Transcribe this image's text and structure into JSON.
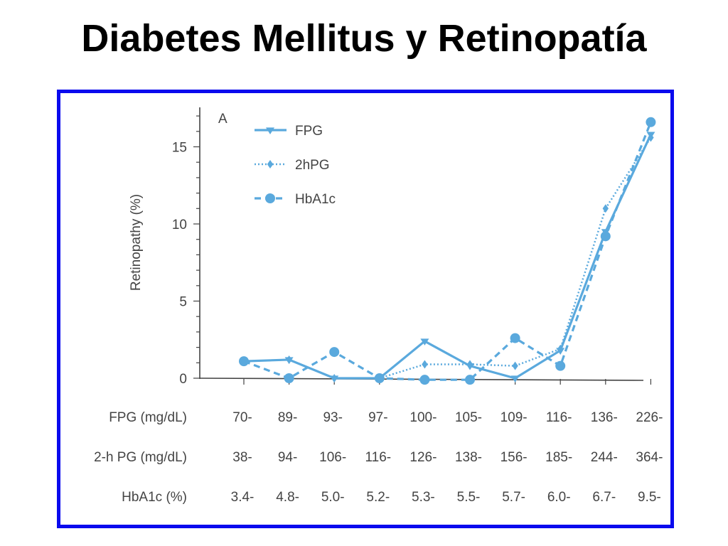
{
  "slide": {
    "title": "Diabetes Mellitus y Retinopatía"
  },
  "chart_data": {
    "type": "line",
    "panel_label": "A",
    "ylabel": "Retinopathy (%)",
    "ylim": [
      0,
      17
    ],
    "yticks": [
      0,
      5,
      10,
      15
    ],
    "grid": false,
    "legend_position": "top-left",
    "color": "#5aa9dd",
    "categories_count": 10,
    "series": [
      {
        "name": "FPG",
        "style": "solid",
        "marker": "triangle-down",
        "values": [
          1.1,
          1.2,
          0.0,
          0.0,
          2.4,
          0.8,
          0.0,
          1.8,
          9.5,
          15.8
        ]
      },
      {
        "name": "2hPG",
        "style": "dotted",
        "marker": "diamond",
        "values": [
          1.1,
          1.2,
          0.0,
          0.0,
          0.9,
          0.9,
          0.8,
          1.9,
          11.0,
          15.6
        ]
      },
      {
        "name": "HbA1c",
        "style": "dashed",
        "marker": "circle",
        "values": [
          1.1,
          0.0,
          1.7,
          0.0,
          -0.1,
          -0.1,
          2.6,
          0.8,
          9.2,
          16.6
        ]
      }
    ],
    "category_rows": [
      {
        "label": "FPG (mg/dL)",
        "values": [
          "70-",
          "89-",
          "93-",
          "97-",
          "100-",
          "105-",
          "109-",
          "116-",
          "136-",
          "226-"
        ]
      },
      {
        "label": "2-h PG (mg/dL)",
        "values": [
          "38-",
          "94-",
          "106-",
          "116-",
          "126-",
          "138-",
          "156-",
          "185-",
          "244-",
          "364-"
        ]
      },
      {
        "label": "HbA1c (%)",
        "values": [
          "3.4-",
          "4.8-",
          "5.0-",
          "5.2-",
          "5.3-",
          "5.5-",
          "5.7-",
          "6.0-",
          "6.7-",
          "9.5-"
        ]
      }
    ]
  }
}
